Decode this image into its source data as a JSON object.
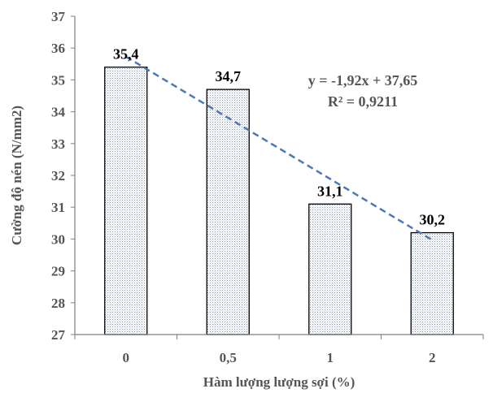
{
  "chart_data": {
    "type": "bar",
    "categories": [
      "0",
      "0,5",
      "1",
      "2"
    ],
    "values": [
      35.4,
      34.7,
      31.1,
      30.2
    ],
    "data_labels": [
      "35,4",
      "34,7",
      "31,1",
      "30,2"
    ],
    "xlabel": "Hàm lượng lượng sợi (%)",
    "ylabel": "Cường độ nén (N/mm2)",
    "ylim": [
      27,
      37
    ],
    "yticks": [
      "27",
      "28",
      "29",
      "30",
      "31",
      "32",
      "33",
      "34",
      "35",
      "36",
      "37"
    ],
    "grid": false,
    "bar_fill": "dotted-pattern",
    "trendline": {
      "type": "linear",
      "slope": -1.92,
      "intercept": 37.65,
      "equation_text": "y = -1,92x + 37,65",
      "r2_text": "R² = 0,9211",
      "color": "#4a7ab5"
    },
    "colors": {
      "bar_border": "#000000",
      "bar_dots": "#7f95b3",
      "axis": "#7f7f7f",
      "label_text": "#555555"
    }
  }
}
